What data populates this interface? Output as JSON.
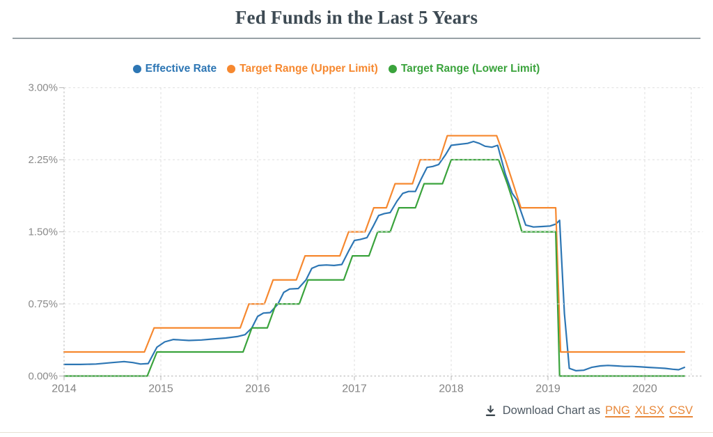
{
  "title": "Fed Funds in the Last 5 Years",
  "download": {
    "icon": "download-icon",
    "label": "Download Chart as",
    "links": [
      {
        "label": "PNG"
      },
      {
        "label": "XLSX"
      },
      {
        "label": "CSV"
      }
    ]
  },
  "colors": {
    "title_text": "#3d4a53",
    "axis_labels": "#8a8a8a",
    "gridlines": "#dedede",
    "axis_lines": "#b4b4b4",
    "title_divider": "#98a1a6",
    "bottom_divider": "#e7e0d3",
    "download_text": "#4e5963",
    "download_links": "#e8883a",
    "effective_rate": "#2d76b4",
    "target_upper": "#f6882f",
    "target_lower": "#3aa33c"
  },
  "chart_data": {
    "type": "line",
    "title": "Fed Funds in the Last 5 Years",
    "xlabel": "",
    "ylabel": "",
    "grid": true,
    "legend_position": "top-center",
    "x_range": [
      2014.0,
      2020.6
    ],
    "y_range": [
      0.0,
      3.0
    ],
    "grid_x_end": 2020.48,
    "x_ticks": [
      {
        "t": 2014,
        "label": "2014"
      },
      {
        "t": 2015,
        "label": "2015"
      },
      {
        "t": 2016,
        "label": "2016"
      },
      {
        "t": 2017,
        "label": "2017"
      },
      {
        "t": 2018,
        "label": "2018"
      },
      {
        "t": 2019,
        "label": "2019"
      },
      {
        "t": 2020,
        "label": "2020"
      }
    ],
    "y_ticks": [
      {
        "v": 0.0,
        "label": "0.00%"
      },
      {
        "v": 0.75,
        "label": "0.75%"
      },
      {
        "v": 1.5,
        "label": "1.50%"
      },
      {
        "v": 2.25,
        "label": "2.25%"
      },
      {
        "v": 3.0,
        "label": "3.00%"
      }
    ],
    "series": [
      {
        "name": "Effective Rate",
        "color": "#2d76b4",
        "points": [
          [
            2014.0,
            0.12
          ],
          [
            2014.17,
            0.12
          ],
          [
            2014.33,
            0.125
          ],
          [
            2014.5,
            0.14
          ],
          [
            2014.62,
            0.15
          ],
          [
            2014.71,
            0.14
          ],
          [
            2014.79,
            0.125
          ],
          [
            2014.87,
            0.13
          ],
          [
            2014.96,
            0.3
          ],
          [
            2015.04,
            0.355
          ],
          [
            2015.13,
            0.38
          ],
          [
            2015.21,
            0.375
          ],
          [
            2015.29,
            0.37
          ],
          [
            2015.42,
            0.375
          ],
          [
            2015.54,
            0.385
          ],
          [
            2015.67,
            0.395
          ],
          [
            2015.79,
            0.41
          ],
          [
            2015.87,
            0.43
          ],
          [
            2015.94,
            0.5
          ],
          [
            2016.0,
            0.62
          ],
          [
            2016.06,
            0.655
          ],
          [
            2016.13,
            0.66
          ],
          [
            2016.21,
            0.75
          ],
          [
            2016.27,
            0.87
          ],
          [
            2016.33,
            0.905
          ],
          [
            2016.42,
            0.91
          ],
          [
            2016.5,
            1.0
          ],
          [
            2016.56,
            1.12
          ],
          [
            2016.63,
            1.15
          ],
          [
            2016.71,
            1.155
          ],
          [
            2016.79,
            1.15
          ],
          [
            2016.87,
            1.16
          ],
          [
            2016.94,
            1.3
          ],
          [
            2017.0,
            1.41
          ],
          [
            2017.06,
            1.42
          ],
          [
            2017.13,
            1.44
          ],
          [
            2017.19,
            1.55
          ],
          [
            2017.25,
            1.67
          ],
          [
            2017.31,
            1.69
          ],
          [
            2017.37,
            1.7
          ],
          [
            2017.44,
            1.82
          ],
          [
            2017.5,
            1.9
          ],
          [
            2017.56,
            1.92
          ],
          [
            2017.63,
            1.92
          ],
          [
            2017.69,
            2.05
          ],
          [
            2017.75,
            2.17
          ],
          [
            2017.81,
            2.18
          ],
          [
            2017.87,
            2.2
          ],
          [
            2017.94,
            2.3
          ],
          [
            2018.0,
            2.4
          ],
          [
            2018.08,
            2.41
          ],
          [
            2018.17,
            2.42
          ],
          [
            2018.23,
            2.44
          ],
          [
            2018.29,
            2.42
          ],
          [
            2018.35,
            2.39
          ],
          [
            2018.42,
            2.38
          ],
          [
            2018.48,
            2.4
          ],
          [
            2018.56,
            2.1
          ],
          [
            2018.63,
            1.9
          ],
          [
            2018.68,
            1.83
          ],
          [
            2018.77,
            1.57
          ],
          [
            2018.85,
            1.55
          ],
          [
            2018.94,
            1.555
          ],
          [
            2019.02,
            1.56
          ],
          [
            2019.08,
            1.58
          ],
          [
            2019.12,
            1.62
          ],
          [
            2019.17,
            0.65
          ],
          [
            2019.22,
            0.08
          ],
          [
            2019.29,
            0.055
          ],
          [
            2019.37,
            0.06
          ],
          [
            2019.45,
            0.09
          ],
          [
            2019.54,
            0.105
          ],
          [
            2019.62,
            0.11
          ],
          [
            2019.71,
            0.105
          ],
          [
            2019.79,
            0.1
          ],
          [
            2019.87,
            0.1
          ],
          [
            2019.96,
            0.095
          ],
          [
            2020.04,
            0.09
          ],
          [
            2020.13,
            0.085
          ],
          [
            2020.21,
            0.08
          ],
          [
            2020.29,
            0.07
          ],
          [
            2020.35,
            0.065
          ],
          [
            2020.41,
            0.09
          ]
        ]
      },
      {
        "name": "Target Range (Upper Limit)",
        "color": "#f6882f",
        "points": [
          [
            2014.0,
            0.25
          ],
          [
            2014.83,
            0.25
          ],
          [
            2014.93,
            0.5
          ],
          [
            2015.82,
            0.5
          ],
          [
            2015.91,
            0.75
          ],
          [
            2016.07,
            0.75
          ],
          [
            2016.16,
            1.0
          ],
          [
            2016.4,
            1.0
          ],
          [
            2016.49,
            1.25
          ],
          [
            2016.85,
            1.25
          ],
          [
            2016.94,
            1.5
          ],
          [
            2017.11,
            1.5
          ],
          [
            2017.2,
            1.75
          ],
          [
            2017.33,
            1.75
          ],
          [
            2017.42,
            2.0
          ],
          [
            2017.6,
            2.0
          ],
          [
            2017.68,
            2.25
          ],
          [
            2017.88,
            2.25
          ],
          [
            2017.96,
            2.5
          ],
          [
            2018.47,
            2.5
          ],
          [
            2018.56,
            2.25
          ],
          [
            2018.64,
            2.0
          ],
          [
            2018.72,
            1.75
          ],
          [
            2019.08,
            1.75
          ],
          [
            2019.13,
            0.25
          ],
          [
            2020.41,
            0.25
          ]
        ]
      },
      {
        "name": "Target Range (Lower Limit)",
        "color": "#3aa33c",
        "points": [
          [
            2014.0,
            0.0
          ],
          [
            2014.86,
            0.0
          ],
          [
            2014.96,
            0.25
          ],
          [
            2015.85,
            0.25
          ],
          [
            2015.94,
            0.5
          ],
          [
            2016.1,
            0.5
          ],
          [
            2016.19,
            0.75
          ],
          [
            2016.43,
            0.75
          ],
          [
            2016.52,
            1.0
          ],
          [
            2016.89,
            1.0
          ],
          [
            2016.98,
            1.25
          ],
          [
            2017.15,
            1.25
          ],
          [
            2017.24,
            1.5
          ],
          [
            2017.37,
            1.5
          ],
          [
            2017.46,
            1.75
          ],
          [
            2017.63,
            1.75
          ],
          [
            2017.72,
            2.0
          ],
          [
            2017.91,
            2.0
          ],
          [
            2018.0,
            2.25
          ],
          [
            2018.49,
            2.25
          ],
          [
            2018.58,
            2.0
          ],
          [
            2018.66,
            1.75
          ],
          [
            2018.73,
            1.5
          ],
          [
            2019.08,
            1.5
          ],
          [
            2019.12,
            0.0
          ],
          [
            2020.41,
            0.0
          ]
        ]
      }
    ]
  }
}
